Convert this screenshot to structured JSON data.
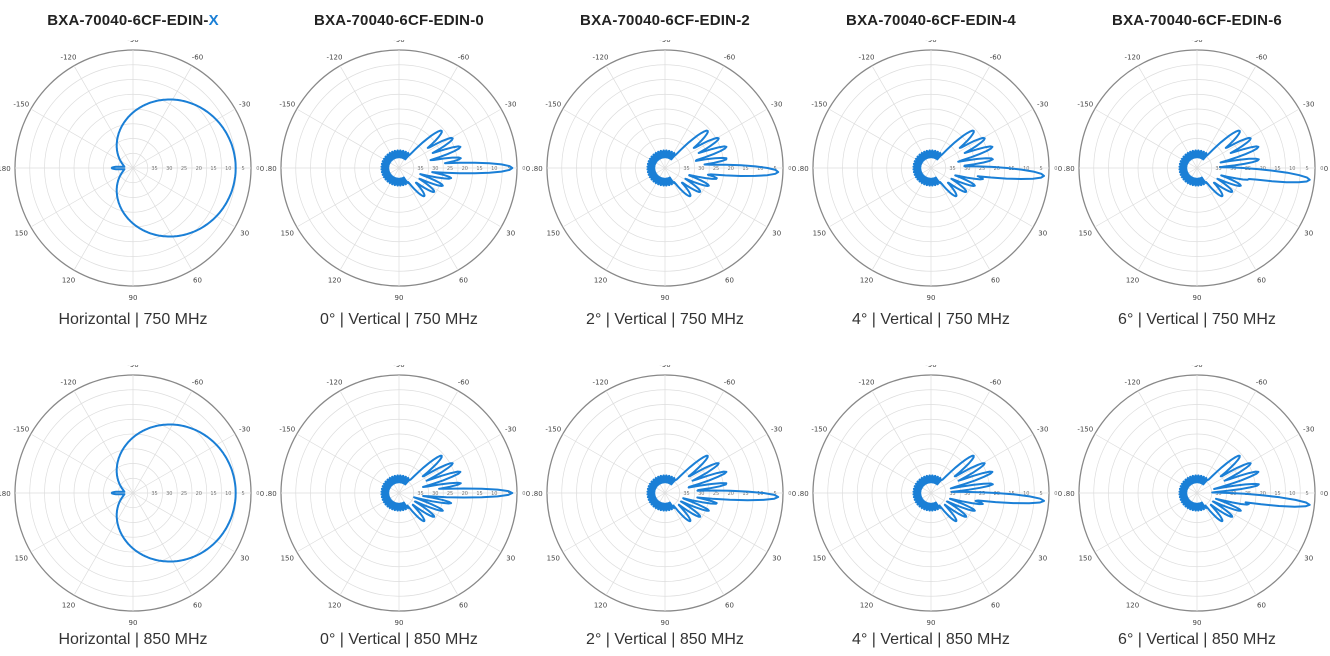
{
  "columns": [
    {
      "title_main": "BXA-70040-6CF-EDIN-",
      "title_suffix": "X"
    },
    {
      "title_main": "BXA-70040-6CF-EDIN-0",
      "title_suffix": ""
    },
    {
      "title_main": "BXA-70040-6CF-EDIN-2",
      "title_suffix": ""
    },
    {
      "title_main": "BXA-70040-6CF-EDIN-4",
      "title_suffix": ""
    },
    {
      "title_main": "BXA-70040-6CF-EDIN-6",
      "title_suffix": ""
    }
  ],
  "captions": {
    "row1": [
      "Horizontal |  750 MHz",
      "0°  |  Vertical |  750 MHz",
      "2°  |  Vertical |  750 MHz",
      "4°  |  Vertical |  750 MHz",
      "6°  |  Vertical |  750 MHz"
    ],
    "row2": [
      "Horizontal |  850 MHz",
      "0°  |  Vertical |  850 MHz",
      "2°  |  Vertical |  850 MHz",
      "4°  |  Vertical |  850 MHz",
      "6°  |  Vertical |  850 MHz"
    ]
  },
  "colors": {
    "pattern": "#1a7fd6",
    "accent": "#1a7fd6",
    "ring": "#888888",
    "grid": "#dddddd"
  },
  "chart_data": [
    {
      "type": "polar",
      "row": 1,
      "col": 0,
      "frequency_mhz": 750,
      "polarization": "Horizontal",
      "tilt_deg": null,
      "pattern": "horizontal",
      "angle_labels": [
        "0",
        "-30",
        "-60",
        "-90",
        "-120",
        "-150",
        "180",
        "150",
        "120",
        "90",
        "60",
        "30"
      ],
      "radial_labels": [
        "35",
        "30",
        "25",
        "20",
        "15",
        "10",
        "5",
        "0"
      ],
      "grid": true
    },
    {
      "type": "polar",
      "row": 1,
      "col": 1,
      "frequency_mhz": 750,
      "polarization": "Vertical",
      "tilt_deg": 0,
      "pattern": "vertical",
      "angle_labels": [
        "0",
        "-30",
        "-60",
        "-90",
        "-120",
        "-150",
        "180",
        "150",
        "120",
        "90",
        "60",
        "30"
      ],
      "radial_labels": [
        "35",
        "30",
        "25",
        "20",
        "15",
        "10",
        "5",
        "0"
      ],
      "grid": true
    },
    {
      "type": "polar",
      "row": 1,
      "col": 2,
      "frequency_mhz": 750,
      "polarization": "Vertical",
      "tilt_deg": 2,
      "pattern": "vertical",
      "angle_labels": [
        "0",
        "-30",
        "-60",
        "-90",
        "-120",
        "-150",
        "180",
        "150",
        "120",
        "90",
        "60",
        "30"
      ],
      "radial_labels": [
        "35",
        "30",
        "25",
        "20",
        "15",
        "10",
        "5",
        "0"
      ],
      "grid": true
    },
    {
      "type": "polar",
      "row": 1,
      "col": 3,
      "frequency_mhz": 750,
      "polarization": "Vertical",
      "tilt_deg": 4,
      "pattern": "vertical",
      "angle_labels": [
        "0",
        "-30",
        "-60",
        "-90",
        "-120",
        "-150",
        "180",
        "150",
        "120",
        "90",
        "60",
        "30"
      ],
      "radial_labels": [
        "35",
        "30",
        "25",
        "20",
        "15",
        "10",
        "5",
        "0"
      ],
      "grid": true
    },
    {
      "type": "polar",
      "row": 1,
      "col": 4,
      "frequency_mhz": 750,
      "polarization": "Vertical",
      "tilt_deg": 6,
      "pattern": "vertical",
      "angle_labels": [
        "0",
        "-30",
        "-60",
        "-90",
        "-120",
        "-150",
        "180",
        "150",
        "120",
        "90",
        "60",
        "30"
      ],
      "radial_labels": [
        "35",
        "30",
        "25",
        "20",
        "15",
        "10",
        "5",
        "0"
      ],
      "grid": true
    },
    {
      "type": "polar",
      "row": 2,
      "col": 0,
      "frequency_mhz": 850,
      "polarization": "Horizontal",
      "tilt_deg": null,
      "pattern": "horizontal",
      "angle_labels": [
        "0",
        "-30",
        "-60",
        "-90",
        "-120",
        "-150",
        "180",
        "150",
        "120",
        "90",
        "60",
        "30"
      ],
      "radial_labels": [
        "35",
        "30",
        "25",
        "20",
        "15",
        "10",
        "5",
        "0"
      ],
      "grid": true
    },
    {
      "type": "polar",
      "row": 2,
      "col": 1,
      "frequency_mhz": 850,
      "polarization": "Vertical",
      "tilt_deg": 0,
      "pattern": "vertical",
      "angle_labels": [
        "0",
        "-30",
        "-60",
        "-90",
        "-120",
        "-150",
        "180",
        "150",
        "120",
        "90",
        "60",
        "30"
      ],
      "radial_labels": [
        "35",
        "30",
        "25",
        "20",
        "15",
        "10",
        "5",
        "0"
      ],
      "grid": true
    },
    {
      "type": "polar",
      "row": 2,
      "col": 2,
      "frequency_mhz": 850,
      "polarization": "Vertical",
      "tilt_deg": 2,
      "pattern": "vertical",
      "angle_labels": [
        "0",
        "-30",
        "-60",
        "-90",
        "-120",
        "-150",
        "180",
        "150",
        "120",
        "90",
        "60",
        "30"
      ],
      "radial_labels": [
        "35",
        "30",
        "25",
        "20",
        "15",
        "10",
        "5",
        "0"
      ],
      "grid": true
    },
    {
      "type": "polar",
      "row": 2,
      "col": 3,
      "frequency_mhz": 850,
      "polarization": "Vertical",
      "tilt_deg": 4,
      "pattern": "vertical",
      "angle_labels": [
        "0",
        "-30",
        "-60",
        "-90",
        "-120",
        "-150",
        "180",
        "150",
        "120",
        "90",
        "60",
        "30"
      ],
      "radial_labels": [
        "35",
        "30",
        "25",
        "20",
        "15",
        "10",
        "5",
        "0"
      ],
      "grid": true
    },
    {
      "type": "polar",
      "row": 2,
      "col": 4,
      "frequency_mhz": 850,
      "polarization": "Vertical",
      "tilt_deg": 6,
      "pattern": "vertical",
      "angle_labels": [
        "0",
        "-30",
        "-60",
        "-90",
        "-120",
        "-150",
        "180",
        "150",
        "120",
        "90",
        "60",
        "30"
      ],
      "radial_labels": [
        "35",
        "30",
        "25",
        "20",
        "15",
        "10",
        "5",
        "0"
      ],
      "grid": true
    }
  ]
}
